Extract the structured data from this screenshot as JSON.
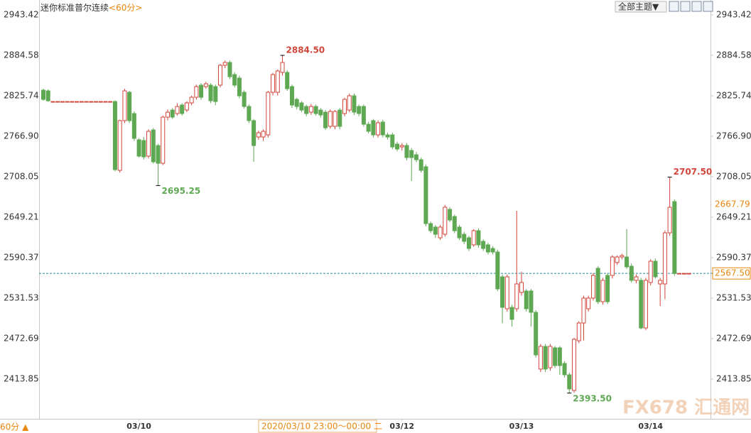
{
  "chart_data": {
    "type": "candlestick",
    "title": "迷你标准普尔连续",
    "subtitle": "<60分>",
    "theme_button": "全部主题▼",
    "period_label": "60分 ▲",
    "crosshair_label": "2020/03/10 23:00～00:00 二",
    "watermark": "FX678 汇通网",
    "up_color": "#d2463a",
    "down_color": "#5ea853",
    "ylim": [
      2356.1,
      2965
    ],
    "yticks": [
      2413.85,
      2472.69,
      2531.53,
      2590.37,
      2649.21,
      2708.05,
      {
        "value": 2766.9,
        "label": "2766.90"
      },
      2825.74,
      2884.58,
      2943.42
    ],
    "categories": [
      null,
      null,
      null,
      null,
      null,
      null,
      null,
      null,
      null,
      null,
      null,
      null,
      null,
      null,
      null,
      null,
      null,
      null,
      null,
      null,
      "03/10",
      null,
      null,
      null,
      null,
      null,
      null,
      null,
      null,
      null,
      null,
      null,
      null,
      null,
      null,
      null,
      null,
      null,
      null,
      null,
      null,
      null,
      null,
      null,
      null,
      null,
      null,
      null,
      null,
      null,
      null,
      null,
      null,
      null,
      null,
      null,
      null,
      null,
      null,
      null,
      null,
      null,
      null,
      null,
      null,
      null,
      null,
      null,
      null,
      null,
      null,
      null,
      null,
      null,
      null,
      "03/12",
      null,
      null,
      null,
      null,
      null,
      null,
      null,
      null,
      null,
      null,
      null,
      null,
      null,
      null,
      null,
      null,
      null,
      null,
      null,
      null,
      null,
      null,
      null,
      null,
      "03/13",
      null,
      null,
      null,
      null,
      null,
      null,
      null,
      null,
      null,
      null,
      null,
      null,
      null,
      null,
      null,
      null,
      null,
      null,
      null,
      null,
      null,
      null,
      null,
      null,
      null,
      null,
      "03/14",
      null,
      null,
      null,
      null,
      null,
      null,
      null,
      null
    ],
    "open": [
      2833.9,
      2832.9,
      2817.4,
      2817.4,
      2817.4,
      2817.4,
      2817.4,
      2817.4,
      2817.4,
      2817.4,
      2817.4,
      2817.4,
      2817.4,
      2817.4,
      2817.4,
      2817.4,
      2717.3,
      2789.6,
      2830.8,
      2799.9,
      2761.7,
      2760.7,
      2738,
      2776.1,
      2753.4,
      2727.6,
      2794.7,
      2805,
      2799.9,
      2812.3,
      2805,
      2815.4,
      2823.6,
      2841.2,
      2839.1,
      2841.2,
      2839.1,
      2841.2,
      2870.1,
      2874.2,
      2856.6,
      2851.5,
      2830.8,
      2810.2,
      2789.6,
      2765.8,
      2765.8,
      2768.9,
      2830.8,
      2830.8,
      2859.7,
      2859.7,
      2839.1,
      2820.5,
      2815.4,
      2810.2,
      2801.9,
      2810.2,
      2805,
      2801.9,
      2781.3,
      2781.3,
      2805,
      2799.9,
      2805,
      2825.7,
      2810.2,
      2810.2,
      2784.4,
      2789.6,
      2768.9,
      2787.5,
      2768.9,
      2768.9,
      2755.5,
      2751.4,
      2753.4,
      2746.2,
      2740,
      2732.8,
      2722.5,
      2639.9,
      2634.8,
      2619.3,
      2624.4,
      2660.6,
      2650.2,
      2634.8,
      2624.4,
      2619.3,
      2609,
      2629.6,
      2614.1,
      2609,
      2603.8,
      2598.6,
      2562.5,
      2516.1,
      2518.1,
      2516.1,
      2539.8,
      2541.9,
      2541.9,
      2510.9,
      2428.4,
      2461.4,
      2430.4,
      2459.3,
      2459.3,
      2436.6,
      2420.1,
      2397.4,
      2469.6,
      2495.4,
      2516.1,
      2531.6,
      2574.9,
      2526.4,
      2564.6,
      2564.6,
      2583.2,
      2591.4,
      2591.4,
      2578,
      2557.4,
      2557.4,
      2488.2,
      2554.3,
      2585.2,
      2552.2,
      2552.2,
      2626.5,
      2671.9,
      2567.5,
      2567.5,
      2567.5
    ],
    "high": [
      2836,
      2835,
      2817.4,
      2817.4,
      2817.4,
      2817.4,
      2817.4,
      2817.4,
      2817.4,
      2817.4,
      2817.4,
      2817.4,
      2817.4,
      2817.4,
      2817.4,
      2819,
      2791,
      2836,
      2833,
      2803,
      2764,
      2766,
      2777,
      2779,
      2756,
      2797,
      2806,
      2808,
      2815,
      2815,
      2818,
      2826,
      2842,
      2844,
      2846,
      2844,
      2842,
      2872,
      2877,
      2877,
      2860,
      2855,
      2834,
      2813,
      2792,
      2775,
      2777,
      2833,
      2859,
      2864,
      2884.5,
      2863,
      2842,
      2823,
      2818,
      2813,
      2814,
      2813,
      2808,
      2805,
      2806,
      2805,
      2808,
      2823,
      2829,
      2829,
      2813,
      2813,
      2788,
      2792,
      2790,
      2791,
      2772,
      2772,
      2759,
      2757,
      2757,
      2750,
      2744,
      2736,
      2726,
      2643,
      2638,
      2638,
      2667,
      2664,
      2653,
      2638,
      2628,
      2622,
      2632,
      2633,
      2617,
      2612,
      2607,
      2602,
      2566,
      2566,
      2522,
      2658.5,
      2570,
      2545,
      2545,
      2514,
      2465,
      2465,
      2465,
      2462,
      2462,
      2440,
      2423,
      2474,
      2498,
      2535,
      2535,
      2568,
      2578,
      2561,
      2568,
      2594,
      2594,
      2596,
      2632,
      2582,
      2566,
      2561,
      2561,
      2588,
      2589,
      2561,
      2630,
      2707.5,
      2675,
      2567.5,
      2567.5,
      2567.5
    ],
    "low": [
      2818.5,
      2817,
      2817.4,
      2817.4,
      2817.4,
      2817.4,
      2817.4,
      2817.4,
      2817.4,
      2817.4,
      2817.4,
      2817.4,
      2817.4,
      2817.4,
      2817.4,
      2716,
      2714,
      2786,
      2786,
      2760,
      2736,
      2733,
      2735,
      2727,
      2695.25,
      2725,
      2790,
      2792,
      2797,
      2797,
      2802,
      2812,
      2820,
      2820,
      2836,
      2815,
      2812,
      2838,
      2866,
      2850,
      2838,
      2822,
      2807,
      2786,
      2729.7,
      2762,
      2760,
      2765,
      2826,
      2826,
      2855,
      2833,
      2808,
      2806,
      2802,
      2796,
      2798,
      2797,
      2794,
      2776,
      2778,
      2777,
      2777,
      2796,
      2802,
      2798,
      2796,
      2781,
      2771,
      2765,
      2765,
      2765,
      2762,
      2748,
      2745,
      2746,
      2732,
      2701.8,
      2729,
      2714,
      2636,
      2626,
      2619,
      2616,
      2621,
      2642,
      2626,
      2616,
      2610,
      2600,
      2606,
      2605,
      2600,
      2595,
      2595,
      2542,
      2495,
      2512,
      2490,
      2512,
      2535,
      2512,
      2490,
      2445,
      2424,
      2424,
      2426,
      2430,
      2420,
      2416,
      2393.5,
      2394,
      2466,
      2470,
      2512,
      2528,
      2523,
      2522,
      2523,
      2560,
      2580,
      2588,
      2574,
      2554,
      2553,
      2486,
      2485,
      2550,
      2560,
      2520,
      2530,
      2622,
      2564,
      2567.5,
      2567.5,
      2567.5
    ],
    "close": [
      2820.5,
      2818.5,
      2817.4,
      2817.4,
      2817.4,
      2817.4,
      2817.4,
      2817.4,
      2817.4,
      2817.4,
      2817.4,
      2817.4,
      2817.4,
      2817.4,
      2817.4,
      2718.4,
      2789.6,
      2832.9,
      2789.6,
      2763.8,
      2738,
      2736.9,
      2774.1,
      2729.7,
      2727.6,
      2794.7,
      2801.9,
      2794.7,
      2810.2,
      2799.9,
      2815.4,
      2823.6,
      2839.1,
      2823.6,
      2843.2,
      2818.5,
      2817.4,
      2870.1,
      2874.2,
      2853.5,
      2841.2,
      2825.7,
      2810.2,
      2789.6,
      2753.4,
      2772,
      2774.1,
      2830.8,
      2856.6,
      2861.8,
      2874.2,
      2836,
      2812.3,
      2810.2,
      2805,
      2799.9,
      2810.2,
      2799.9,
      2797.8,
      2779.2,
      2803,
      2803,
      2781.3,
      2820.5,
      2825.7,
      2801.9,
      2799.9,
      2784.4,
      2774.1,
      2768.9,
      2786.5,
      2768.9,
      2765.8,
      2751.4,
      2748.3,
      2753.4,
      2735.9,
      2735.9,
      2732.8,
      2717.3,
      2639.9,
      2629.6,
      2624.4,
      2634.8,
      2663.7,
      2645.1,
      2629.6,
      2619.3,
      2614.1,
      2603.8,
      2629.6,
      2609,
      2603.8,
      2598.6,
      2598.6,
      2545,
      2518.1,
      2562.5,
      2500.6,
      2552.2,
      2554.3,
      2516.1,
      2510.9,
      2449,
      2461.4,
      2428.4,
      2461.4,
      2433.5,
      2433.5,
      2420.1,
      2399.5,
      2471.7,
      2495.4,
      2531.6,
      2531.6,
      2564.6,
      2526.4,
      2557.4,
      2526.4,
      2591.4,
      2591.4,
      2593.5,
      2577,
      2557.4,
      2562.5,
      2488.2,
      2557.4,
      2585.2,
      2562.5,
      2557.4,
      2626.5,
      2663.7,
      2567.5,
      2567.5,
      2567.5,
      2567.5
    ],
    "annotations": [
      {
        "value": 2884.5,
        "label": "2884.50"
      },
      {
        "value": 2695.25,
        "label": "2695.25"
      },
      {
        "value": 2707.5,
        "label": "2707.50"
      },
      {
        "value": 2393.5,
        "label": "2393.50"
      }
    ],
    "last_price": {
      "value": 2567.5,
      "label": "2567.50",
      "color": "#2a8a9a"
    },
    "marker_price": {
      "value": 2667.79,
      "label": "2667.79"
    }
  }
}
